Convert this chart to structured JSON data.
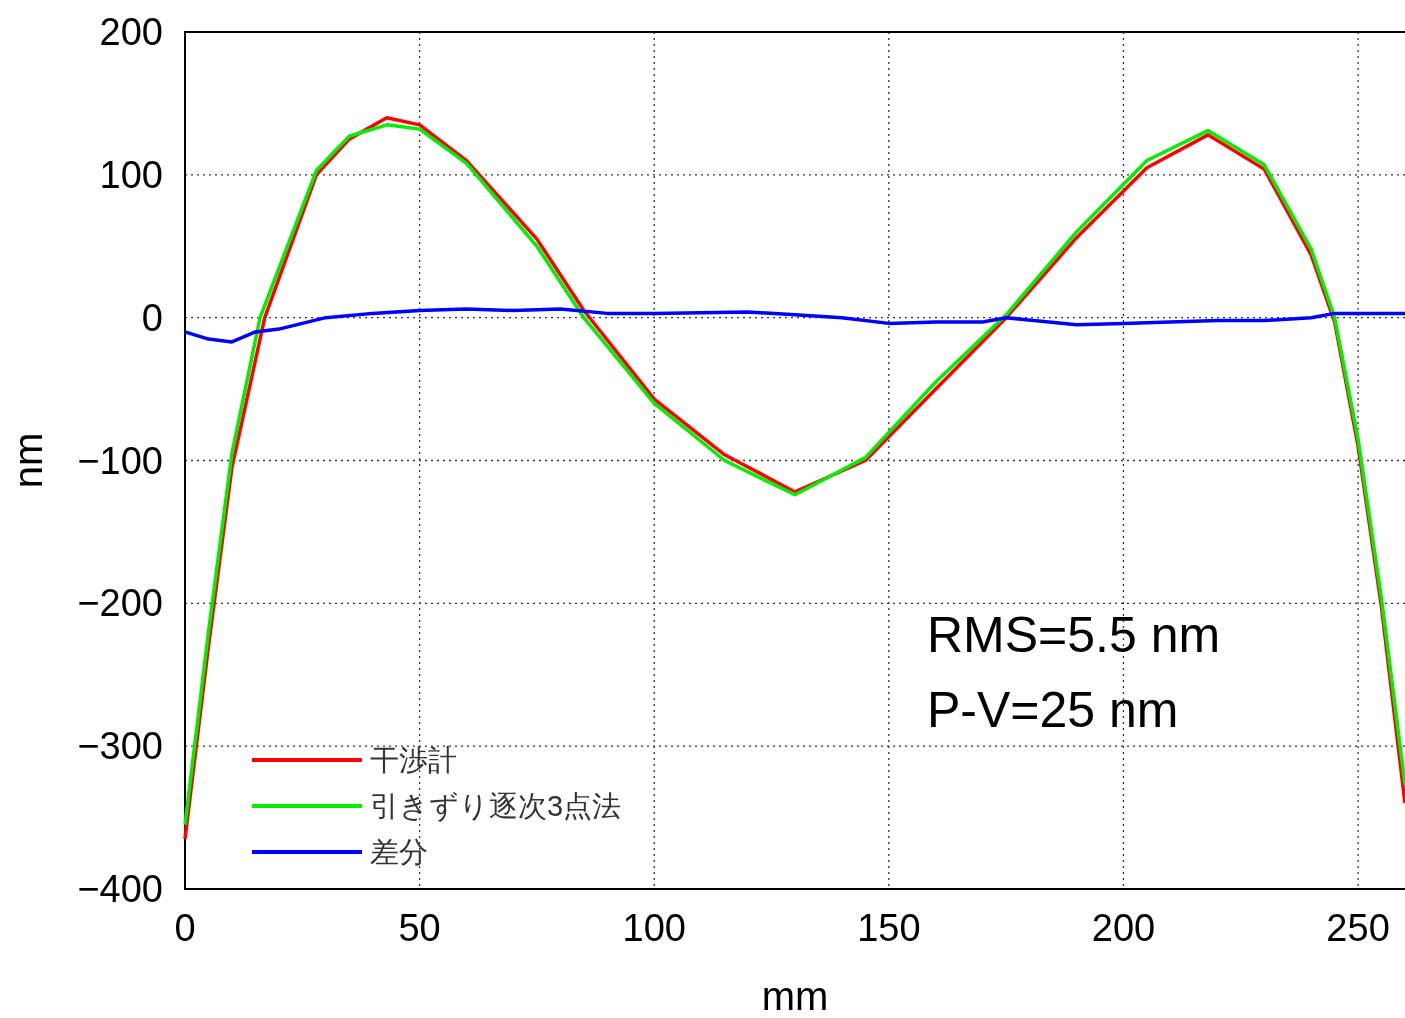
{
  "chart_data": {
    "type": "line",
    "xlabel": "mm",
    "ylabel": "nm",
    "xlim": [
      0,
      260
    ],
    "ylim": [
      -400,
      200
    ],
    "xticks": [
      0,
      50,
      100,
      150,
      200,
      250
    ],
    "yticks": [
      -400,
      -300,
      -200,
      -100,
      0,
      100,
      200
    ],
    "grid": true,
    "legend": "bottom left",
    "line_style": "solid",
    "marker": "none",
    "annotations": [
      "RMS=5.5 nm",
      "P-V=25 nm"
    ],
    "series": [
      {
        "name": "干渉計",
        "color": "#ff0000",
        "x": [
          0,
          5,
          10,
          17,
          28,
          35,
          43,
          50,
          60,
          75,
          85,
          100,
          115,
          130,
          145,
          160,
          175,
          190,
          205,
          218,
          230,
          240,
          245,
          250,
          255,
          260
        ],
        "values": [
          -365,
          -230,
          -105,
          0,
          100,
          125,
          140,
          135,
          110,
          55,
          5,
          -57,
          -96,
          -122,
          -100,
          -50,
          0,
          56,
          105,
          128,
          104,
          44,
          -3,
          -90,
          -203,
          -340
        ]
      },
      {
        "name": "引きずり逐次3点法",
        "color": "#00ee00",
        "x": [
          0,
          5,
          10,
          16,
          28,
          35,
          43,
          50,
          60,
          75,
          85,
          100,
          115,
          130,
          145,
          160,
          175,
          190,
          205,
          218,
          230,
          240,
          245,
          250,
          255,
          260
        ],
        "values": [
          -355,
          -220,
          -95,
          0,
          103,
          127,
          135,
          132,
          108,
          50,
          0,
          -60,
          -100,
          -124,
          -98,
          -45,
          2,
          60,
          110,
          131,
          107,
          48,
          0,
          -85,
          -197,
          -327
        ]
      },
      {
        "name": "差分",
        "color": "#0000ff",
        "x": [
          0,
          5,
          10,
          15,
          20,
          30,
          40,
          50,
          60,
          70,
          80,
          90,
          100,
          120,
          130,
          140,
          150,
          160,
          170,
          175,
          190,
          200,
          220,
          230,
          240,
          245,
          260
        ],
        "values": [
          -10,
          -15,
          -17,
          -10,
          -8,
          0,
          3,
          5,
          6,
          5,
          6,
          3,
          3,
          4,
          2,
          0,
          -4,
          -3,
          -3,
          0,
          -5,
          -4,
          -2,
          -2,
          0,
          3,
          3
        ]
      }
    ]
  }
}
